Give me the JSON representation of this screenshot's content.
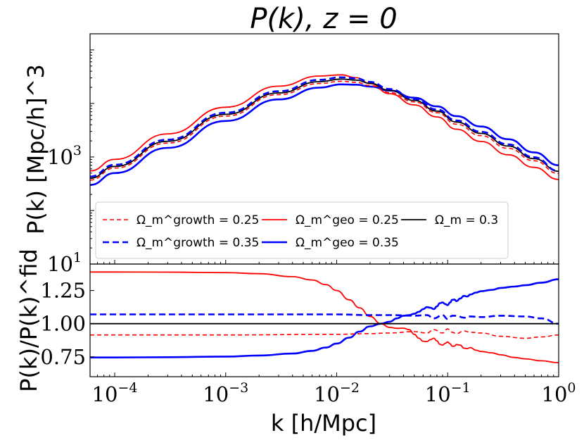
{
  "chart_data": [
    {
      "type": "line",
      "panel": "top",
      "title": "P(k), z = 0",
      "ylabel": "P(k)  [Mpc/h]^3",
      "xscale": "log",
      "yscale": "log",
      "xlim": [
        6e-05,
        1.0
      ],
      "ylim": [
        10,
        200000
      ],
      "yticks": [
        {
          "value": 10,
          "base": "10",
          "exp": "1"
        },
        {
          "value": 1000,
          "base": "10",
          "exp": "3"
        }
      ],
      "legend": {
        "placement": "bottom",
        "ncol": 3,
        "entries": [
          {
            "label": "Ω_m^growth = 0.25",
            "series": "growth_025"
          },
          {
            "label": "Ω_m^geo = 0.25",
            "series": "geo_025"
          },
          {
            "label": "Ω_m = 0.3",
            "series": "fiducial"
          },
          {
            "label": "Ω_m^growth = 0.35",
            "series": "growth_035"
          },
          {
            "label": "Ω_m^geo = 0.35",
            "series": "geo_035"
          }
        ]
      },
      "series": [
        {
          "id": "growth_025",
          "name": "Ω_m^growth = 0.25",
          "color": "#ff0000",
          "dash": "dashed",
          "width": 1.6,
          "x": [
            6e-05,
            0.0001,
            0.0003,
            0.001,
            0.003,
            0.007,
            0.011,
            0.015,
            0.02,
            0.03,
            0.05,
            0.08,
            0.12,
            0.2,
            0.35,
            0.6,
            1.0
          ],
          "y": [
            370,
            620,
            1820,
            5800,
            14600,
            23600,
            26000,
            24800,
            21500,
            16000,
            10700,
            6700,
            4100,
            2500,
            1450,
            850,
            490
          ]
        },
        {
          "id": "geo_025",
          "name": "Ω_m^geo = 0.25",
          "color": "#ff0000",
          "dash": "solid",
          "width": 1.8,
          "x": [
            6e-05,
            0.0001,
            0.0003,
            0.001,
            0.003,
            0.007,
            0.011,
            0.015,
            0.02,
            0.03,
            0.05,
            0.08,
            0.12,
            0.2,
            0.35,
            0.6,
            1.0
          ],
          "y": [
            550,
            900,
            2700,
            8500,
            21000,
            32500,
            34200,
            30200,
            23500,
            15200,
            9400,
            5600,
            3300,
            1950,
            1100,
            640,
            380
          ]
        },
        {
          "id": "fiducial",
          "name": "Ω_m = 0.3",
          "color": "#000000",
          "dash": "solid",
          "width": 1.8,
          "x": [
            6e-05,
            0.0001,
            0.0003,
            0.001,
            0.003,
            0.007,
            0.011,
            0.015,
            0.02,
            0.03,
            0.05,
            0.08,
            0.12,
            0.2,
            0.35,
            0.6,
            1.0
          ],
          "y": [
            400,
            665,
            1970,
            6250,
            15700,
            25500,
            28500,
            27300,
            23800,
            17500,
            11400,
            7200,
            4500,
            2750,
            1600,
            930,
            540
          ]
        },
        {
          "id": "growth_035",
          "name": "Ω_m^growth = 0.35",
          "color": "#0000ff",
          "dash": "dashed",
          "width": 2.6,
          "x": [
            6e-05,
            0.0001,
            0.0003,
            0.001,
            0.003,
            0.007,
            0.011,
            0.015,
            0.02,
            0.03,
            0.05,
            0.08,
            0.12,
            0.2,
            0.35,
            0.6,
            1.0
          ],
          "y": [
            430,
            715,
            2110,
            6700,
            16900,
            27600,
            30800,
            29500,
            25300,
            18600,
            12100,
            7700,
            4800,
            2950,
            1720,
            990,
            550
          ]
        },
        {
          "id": "geo_035",
          "name": "Ω_m^geo = 0.35",
          "color": "#0000ff",
          "dash": "solid",
          "width": 2.6,
          "x": [
            6e-05,
            0.0001,
            0.0003,
            0.001,
            0.003,
            0.007,
            0.011,
            0.015,
            0.02,
            0.03,
            0.05,
            0.08,
            0.12,
            0.2,
            0.35,
            0.6,
            1.0
          ],
          "y": [
            300,
            500,
            1480,
            4700,
            11900,
            19700,
            22700,
            22400,
            20700,
            17400,
            12800,
            8800,
            5800,
            3700,
            2150,
            1220,
            700
          ]
        }
      ]
    },
    {
      "type": "line",
      "panel": "bottom",
      "ylabel": "P(k)/P(k)^fid",
      "xlabel": "k  [h/Mpc]",
      "xscale": "log",
      "xlim": [
        6e-05,
        1.0
      ],
      "ylim": [
        0.6,
        1.45
      ],
      "yticks": [
        "0.75",
        "1.00",
        "1.25"
      ],
      "xticks": [
        {
          "value": 0.0001,
          "base": "10",
          "exp": "−4"
        },
        {
          "value": 0.001,
          "base": "10",
          "exp": "−3"
        },
        {
          "value": 0.01,
          "base": "10",
          "exp": "−2"
        },
        {
          "value": 0.1,
          "base": "10",
          "exp": "−1"
        },
        {
          "value": 1.0,
          "base": "10",
          "exp": "0"
        }
      ],
      "series": [
        {
          "id": "geo_025_ratio",
          "name": "Ω_m^geo = 0.25",
          "color": "#ff0000",
          "dash": "solid",
          "width": 1.8,
          "x": [
            6e-05,
            0.0001,
            0.0003,
            0.001,
            0.002,
            0.004,
            0.006,
            0.008,
            0.01,
            0.013,
            0.016,
            0.02,
            0.025,
            0.03,
            0.035,
            0.04,
            0.045,
            0.05,
            0.055,
            0.06,
            0.065,
            0.07,
            0.075,
            0.08,
            0.085,
            0.09,
            0.095,
            0.1,
            0.105,
            0.11,
            0.115,
            0.12,
            0.13,
            0.14,
            0.15,
            0.16,
            0.18,
            0.2,
            0.25,
            0.3,
            0.4,
            0.5,
            0.7,
            1.0
          ],
          "y": [
            1.39,
            1.39,
            1.389,
            1.385,
            1.377,
            1.355,
            1.33,
            1.295,
            1.25,
            1.18,
            1.12,
            1.055,
            1.0,
            0.972,
            0.965,
            0.966,
            0.955,
            0.92,
            0.89,
            0.868,
            0.865,
            0.88,
            0.89,
            0.87,
            0.845,
            0.838,
            0.852,
            0.862,
            0.848,
            0.83,
            0.83,
            0.843,
            0.838,
            0.815,
            0.812,
            0.82,
            0.8,
            0.79,
            0.78,
            0.765,
            0.745,
            0.735,
            0.72,
            0.705
          ]
        },
        {
          "id": "geo_035_ratio",
          "name": "Ω_m^geo = 0.35",
          "color": "#0000ff",
          "dash": "solid",
          "width": 2.6,
          "x": [
            6e-05,
            0.0001,
            0.0003,
            0.001,
            0.002,
            0.004,
            0.006,
            0.008,
            0.01,
            0.013,
            0.016,
            0.02,
            0.025,
            0.03,
            0.035,
            0.04,
            0.045,
            0.05,
            0.055,
            0.06,
            0.065,
            0.07,
            0.075,
            0.08,
            0.085,
            0.09,
            0.095,
            0.1,
            0.105,
            0.11,
            0.115,
            0.12,
            0.13,
            0.14,
            0.15,
            0.16,
            0.18,
            0.2,
            0.25,
            0.3,
            0.4,
            0.5,
            0.7,
            1.0
          ],
          "y": [
            0.745,
            0.745,
            0.747,
            0.752,
            0.76,
            0.775,
            0.795,
            0.82,
            0.85,
            0.895,
            0.94,
            0.98,
            1.0,
            1.015,
            1.04,
            1.06,
            1.065,
            1.075,
            1.09,
            1.11,
            1.125,
            1.12,
            1.11,
            1.13,
            1.155,
            1.16,
            1.148,
            1.14,
            1.16,
            1.18,
            1.182,
            1.17,
            1.19,
            1.21,
            1.205,
            1.22,
            1.235,
            1.245,
            1.255,
            1.27,
            1.28,
            1.29,
            1.31,
            1.335
          ]
        },
        {
          "id": "growth_025_ratio",
          "name": "Ω_m^growth = 0.25",
          "color": "#ff0000",
          "dash": "dashed",
          "width": 1.6,
          "x": [
            6e-05,
            0.0001,
            0.001,
            0.01,
            0.02,
            0.03,
            0.05,
            0.065,
            0.075,
            0.09,
            0.1,
            0.11,
            0.12,
            0.14,
            0.16,
            0.2,
            0.3,
            0.5,
            0.7,
            1.0
          ],
          "y": [
            0.915,
            0.915,
            0.915,
            0.92,
            0.925,
            0.93,
            0.94,
            0.93,
            0.955,
            0.93,
            0.96,
            0.935,
            0.925,
            0.945,
            0.935,
            0.93,
            0.905,
            0.89,
            0.9,
            0.915
          ]
        },
        {
          "id": "growth_035_ratio",
          "name": "Ω_m^growth = 0.35",
          "color": "#0000ff",
          "dash": "dashed",
          "width": 2.6,
          "x": [
            6e-05,
            0.0001,
            0.001,
            0.01,
            0.02,
            0.03,
            0.05,
            0.065,
            0.075,
            0.09,
            0.1,
            0.11,
            0.12,
            0.14,
            0.16,
            0.2,
            0.3,
            0.5,
            0.7,
            1.0
          ],
          "y": [
            1.07,
            1.07,
            1.07,
            1.07,
            1.065,
            1.065,
            1.06,
            1.065,
            1.04,
            1.065,
            1.035,
            1.06,
            1.06,
            1.045,
            1.055,
            1.05,
            1.06,
            1.055,
            1.04,
            1.0
          ]
        },
        {
          "id": "fiducial_ratio",
          "name": "Ω_m = 0.3",
          "color": "#000000",
          "dash": "solid",
          "width": 1.8,
          "x": [
            6e-05,
            1.0
          ],
          "y": [
            1.0,
            1.0
          ]
        }
      ]
    }
  ]
}
